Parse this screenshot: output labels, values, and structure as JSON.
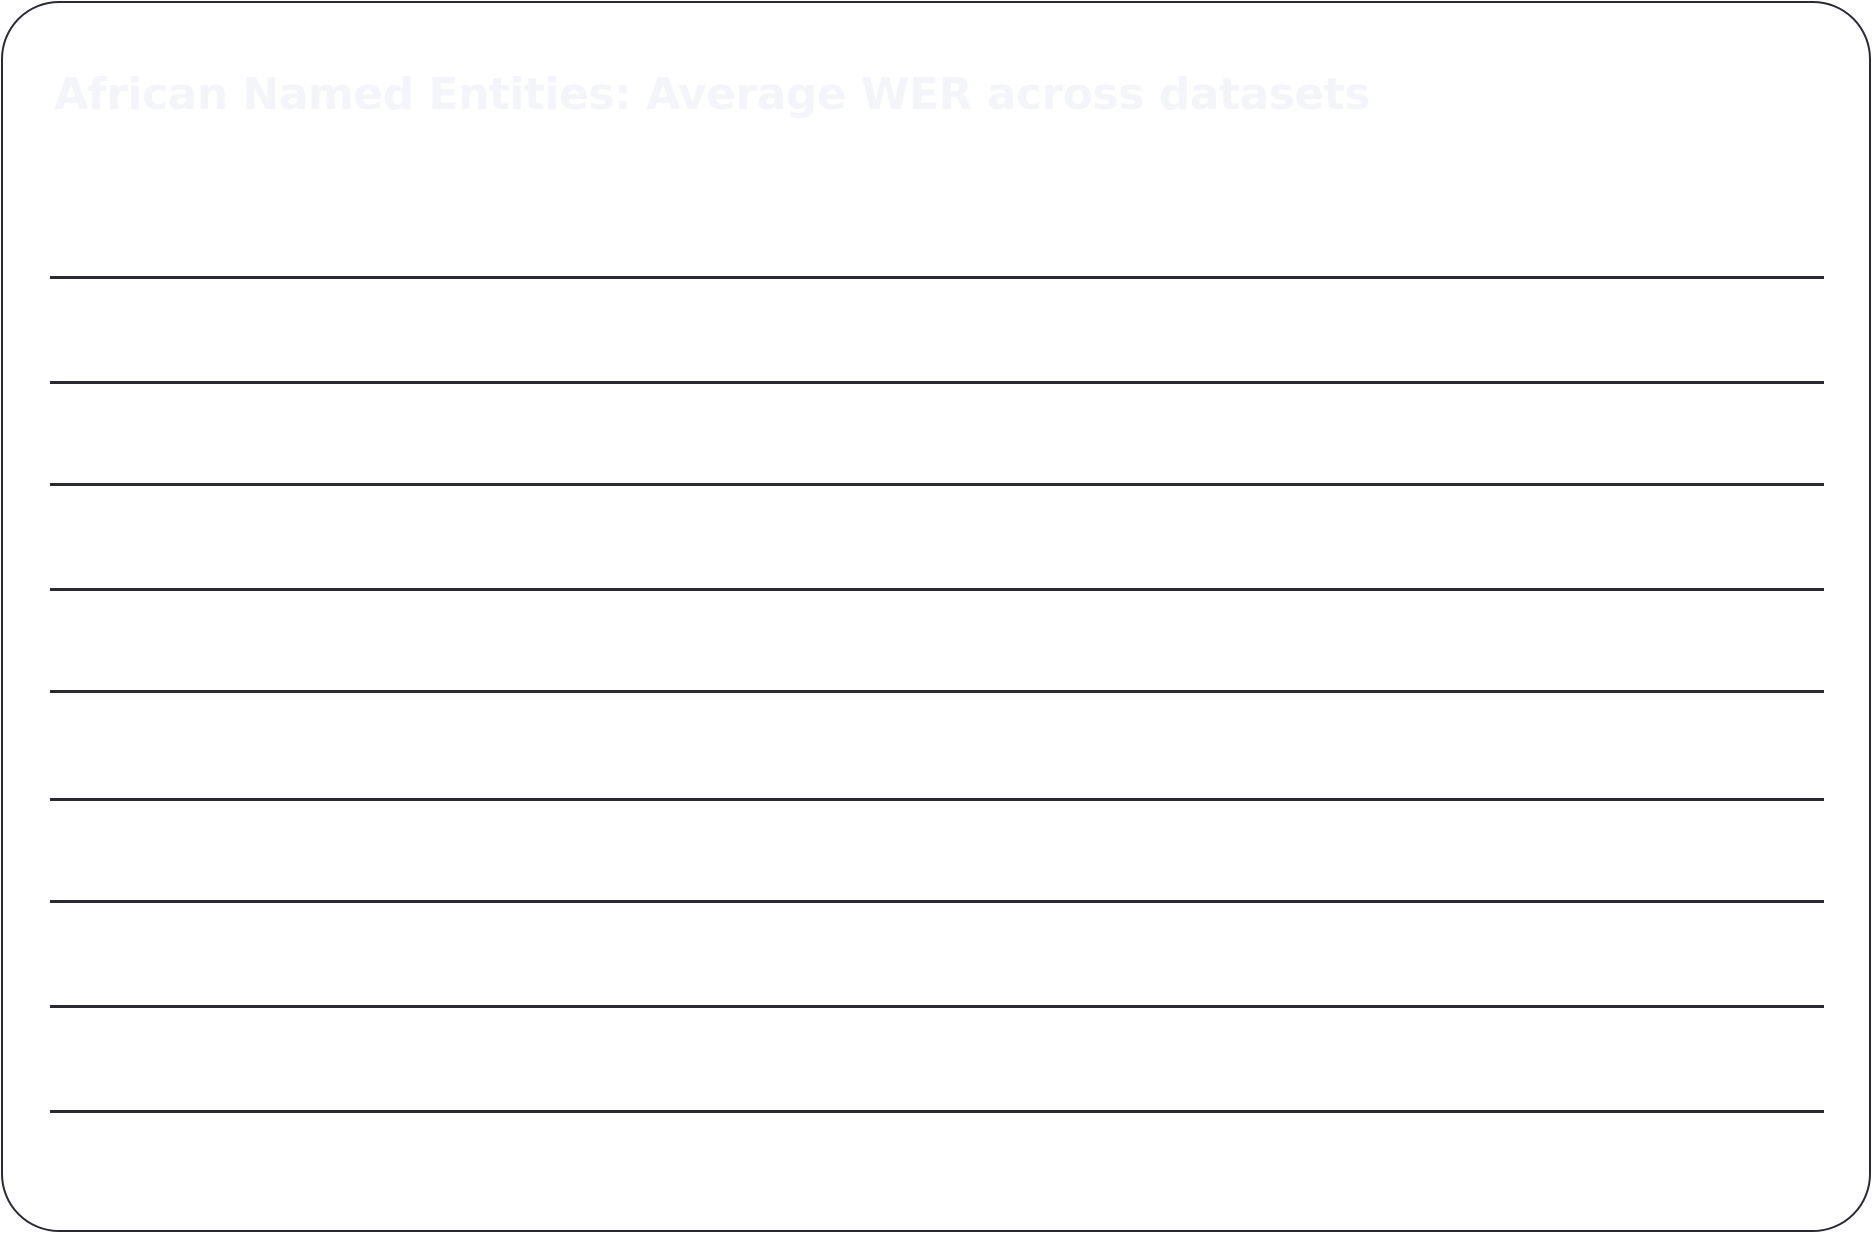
{
  "card": {
    "title": "African Named Entities: Average WER across datasets",
    "colors": {
      "border": "#2b2a33",
      "title": "#f3f5fa",
      "rule": "#2b2a33",
      "background": "#ffffff"
    }
  },
  "rows": [
    {
      "label": ""
    },
    {
      "label": ""
    },
    {
      "label": ""
    },
    {
      "label": ""
    },
    {
      "label": ""
    },
    {
      "label": ""
    },
    {
      "label": ""
    },
    {
      "label": ""
    },
    {
      "label": ""
    }
  ]
}
